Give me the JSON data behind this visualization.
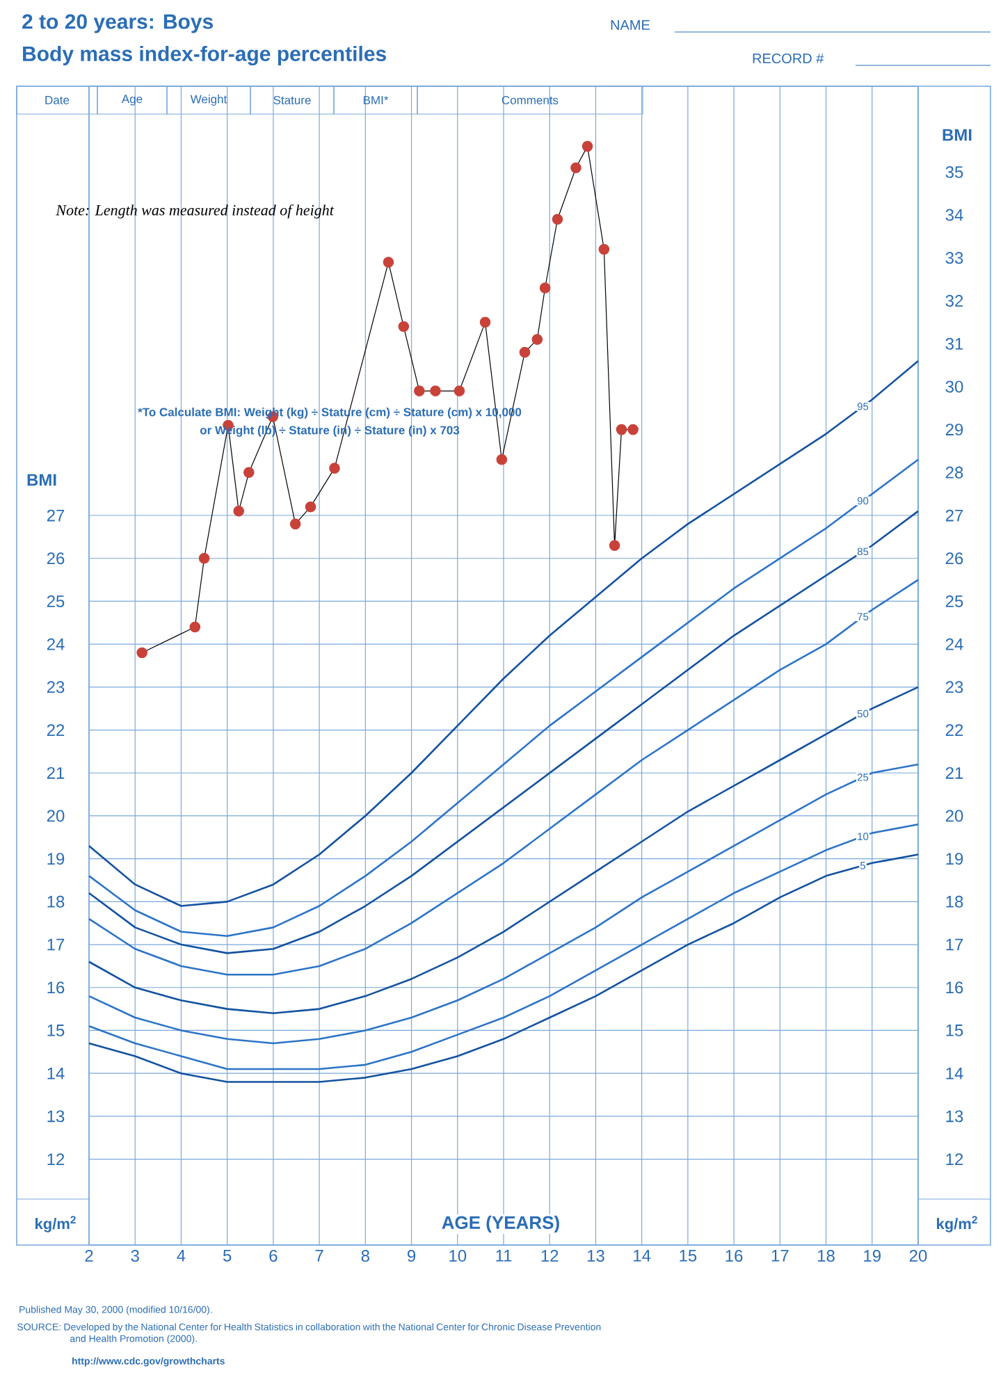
{
  "chart_data": {
    "type": "line",
    "title": "2 to 20 years: Boys",
    "subtitle": "Body mass index-for-age percentiles",
    "xlabel": "AGE (YEARS)",
    "ylabel": "BMI",
    "y2label": "BMI",
    "x": [
      2,
      3,
      4,
      5,
      6,
      7,
      8,
      9,
      10,
      11,
      12,
      13,
      14,
      15,
      16,
      17,
      18,
      19,
      20
    ],
    "series": [
      {
        "name": "95",
        "color": "#13529f",
        "marker": "none",
        "values": [
          19.3,
          18.4,
          17.9,
          18.0,
          18.4,
          19.1,
          20.0,
          21.0,
          22.1,
          23.2,
          24.2,
          25.1,
          26.0,
          26.8,
          27.5,
          28.2,
          28.9,
          29.7,
          30.6
        ]
      },
      {
        "name": "90",
        "color": "#2c74c6",
        "marker": "none",
        "values": [
          18.6,
          17.8,
          17.3,
          17.2,
          17.4,
          17.9,
          18.6,
          19.4,
          20.3,
          21.2,
          22.1,
          22.9,
          23.7,
          24.5,
          25.3,
          26.0,
          26.7,
          27.5,
          28.3
        ]
      },
      {
        "name": "85",
        "color": "#13529f",
        "marker": "none",
        "values": [
          18.2,
          17.4,
          17.0,
          16.8,
          16.9,
          17.3,
          17.9,
          18.6,
          19.4,
          20.2,
          21.0,
          21.8,
          22.6,
          23.4,
          24.2,
          24.9,
          25.6,
          26.3,
          27.1
        ]
      },
      {
        "name": "75",
        "color": "#2c74c6",
        "marker": "none",
        "values": [
          17.6,
          16.9,
          16.5,
          16.3,
          16.3,
          16.5,
          16.9,
          17.5,
          18.2,
          18.9,
          19.7,
          20.5,
          21.3,
          22.0,
          22.7,
          23.4,
          24.0,
          24.8,
          25.5
        ]
      },
      {
        "name": "50",
        "color": "#13529f",
        "marker": "none",
        "values": [
          16.6,
          16.0,
          15.7,
          15.5,
          15.4,
          15.5,
          15.8,
          16.2,
          16.7,
          17.3,
          18.0,
          18.7,
          19.4,
          20.1,
          20.7,
          21.3,
          21.9,
          22.5,
          23.0
        ]
      },
      {
        "name": "25",
        "color": "#2c74c6",
        "marker": "none",
        "values": [
          15.8,
          15.3,
          15.0,
          14.8,
          14.7,
          14.8,
          15.0,
          15.3,
          15.7,
          16.2,
          16.8,
          17.4,
          18.1,
          18.7,
          19.3,
          19.9,
          20.5,
          21.0,
          21.2
        ]
      },
      {
        "name": "10",
        "color": "#2c74c6",
        "marker": "none",
        "values": [
          15.1,
          14.7,
          14.4,
          14.1,
          14.1,
          14.1,
          14.2,
          14.5,
          14.9,
          15.3,
          15.8,
          16.4,
          17.0,
          17.6,
          18.2,
          18.7,
          19.2,
          19.6,
          19.8
        ]
      },
      {
        "name": "5",
        "color": "#13529f",
        "marker": "none",
        "values": [
          14.7,
          14.4,
          14.0,
          13.8,
          13.8,
          13.8,
          13.9,
          14.1,
          14.4,
          14.8,
          15.3,
          15.8,
          16.4,
          17.0,
          17.5,
          18.1,
          18.6,
          18.9,
          19.1
        ]
      },
      {
        "color": "#c8423a",
        "marker": "circle",
        "x": [
          3.15,
          4.3,
          4.5,
          5.02,
          5.25,
          5.47,
          5.99,
          6.48,
          6.81,
          7.33,
          8.5,
          8.83,
          9.17,
          9.52,
          10.04,
          10.6,
          10.96,
          11.46,
          11.73,
          11.9,
          12.17,
          12.57,
          12.82,
          13.18,
          13.41,
          13.56,
          13.81
        ],
        "values": [
          23.8,
          24.4,
          26.0,
          29.1,
          27.1,
          28.0,
          29.3,
          26.8,
          27.2,
          28.1,
          32.9,
          31.4,
          29.9,
          29.9,
          29.9,
          31.5,
          28.3,
          30.8,
          31.1,
          32.3,
          33.9,
          35.1,
          35.6,
          33.2,
          26.3,
          29.0,
          29.0
        ]
      }
    ],
    "xlim": [
      2,
      20
    ],
    "ylim": [
      10,
      37
    ],
    "y2lim": [
      10,
      37
    ],
    "xticks": [
      2,
      3,
      4,
      5,
      6,
      7,
      8,
      9,
      10,
      11,
      12,
      13,
      14,
      15,
      16,
      17,
      18,
      19,
      20
    ],
    "yticks": [
      12,
      13,
      14,
      15,
      16,
      17,
      18,
      19,
      20,
      21,
      22,
      23,
      24,
      25,
      26,
      27
    ],
    "y2ticks": [
      12,
      13,
      14,
      15,
      16,
      17,
      18,
      19,
      20,
      21,
      22,
      23,
      24,
      25,
      26,
      27,
      28,
      29,
      30,
      31,
      32,
      33,
      34,
      35
    ],
    "grid": true,
    "line_style": "solid",
    "annotations": [
      "NAME",
      "RECORD #",
      "Date",
      "Age",
      "Weight",
      "Stature",
      "BMI*",
      "Comments",
      "Note: Length was measured instead of height",
      "*To Calculate BMI: Weight (kg) ÷ Stature (cm) ÷ Stature (cm) x 10,000",
      "or Weight (lb) ÷ Stature (in) ÷ Stature (in) x 703",
      "kg/m$^{2}$",
      "kg/m$^{2}$",
      "Published May 30, 2000 (modified 10/16/00).",
      "SOURCE: Developed by the National Center for Health Statistics in collaboration with the National Center for Chronic Disease Prevention and Health Promotion (2000).",
      "http://www.cdc.gov/growthcharts"
    ]
  }
}
